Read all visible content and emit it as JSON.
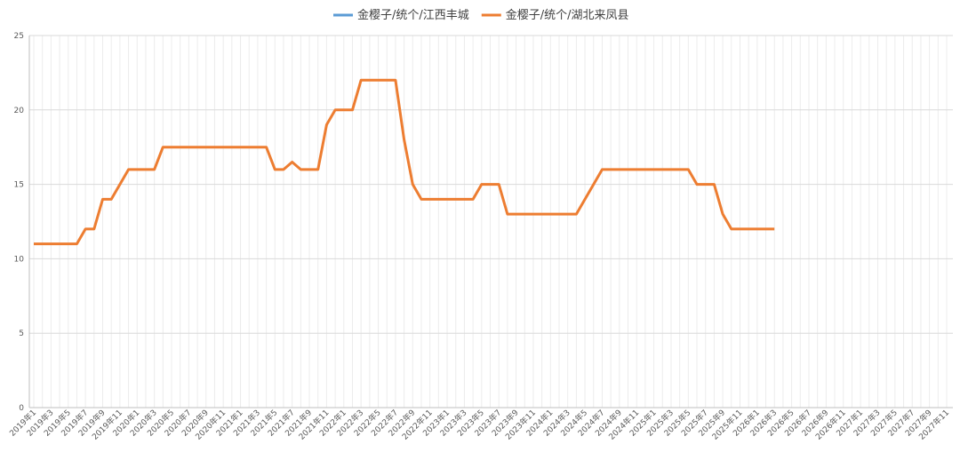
{
  "chart_data": {
    "type": "line",
    "categories": [
      "2019年1",
      null,
      "2019年3",
      null,
      "2019年5",
      null,
      "2019年7",
      null,
      "2019年9",
      null,
      "2019年11",
      null,
      "2020年1",
      null,
      "2020年3",
      null,
      "2020年5",
      null,
      "2020年7",
      null,
      "2020年9",
      null,
      "2020年11",
      null,
      "2021年1",
      null,
      "2021年3",
      null,
      "2021年5",
      null,
      "2021年7",
      null,
      "2021年9",
      null,
      "2021年11",
      null,
      "2022年1",
      null,
      "2022年3",
      null,
      "2022年5",
      null,
      "2022年7",
      null,
      "2022年9",
      null,
      "2022年11",
      null,
      "2023年1",
      null,
      "2023年3",
      null,
      "2023年5",
      null,
      "2023年7",
      null,
      "2023年9",
      null,
      "2023年11",
      null,
      "2024年1",
      null,
      "2024年3",
      null,
      "2024年5",
      null,
      "2024年7",
      null,
      "2024年9",
      null,
      "2024年11",
      null,
      "2025年1",
      null,
      "2025年3",
      null,
      "2025年5",
      null,
      "2025年7",
      null,
      "2025年9",
      null,
      "2025年11",
      null,
      "2026年1",
      null,
      "2026年3",
      null,
      "2026年5",
      null,
      "2026年7",
      null,
      "2026年9",
      null,
      "2026年11",
      null,
      "2027年1",
      null,
      "2027年3",
      null,
      "2027年5",
      null,
      "2027年7",
      null,
      "2027年9",
      null,
      "2027年11"
    ],
    "series": [
      {
        "name": "金樱子/统个/江西丰城",
        "color": "#5b9bd5",
        "values": [
          null,
          null,
          null,
          null,
          null,
          null,
          null,
          null,
          null,
          null,
          null,
          null,
          null,
          null,
          null,
          null,
          null,
          null,
          null,
          null,
          null,
          null,
          null,
          null,
          null,
          null,
          null,
          null,
          null,
          null,
          null,
          null,
          null,
          null,
          null,
          null,
          null,
          null,
          null,
          null,
          null,
          null,
          null,
          null,
          null,
          null,
          null,
          null,
          null,
          null,
          null,
          null,
          null,
          null,
          null,
          null,
          null,
          null,
          null,
          null,
          null,
          null,
          null,
          null,
          null,
          null,
          null,
          null,
          null,
          null,
          null,
          null,
          null,
          null,
          null,
          null,
          null,
          null,
          null,
          null,
          null,
          null,
          null,
          null,
          null,
          null,
          null,
          null,
          null,
          null,
          null,
          null,
          null,
          null,
          null,
          null,
          null,
          null,
          null,
          null,
          null,
          null,
          null,
          null,
          null,
          null,
          null
        ]
      },
      {
        "name": "金樱子/统个/湖北来凤县",
        "color": "#ed7d31",
        "values": [
          11,
          11,
          11,
          11,
          11,
          11,
          12,
          12,
          14,
          14,
          15,
          16,
          16,
          16,
          16,
          17.5,
          17.5,
          17.5,
          17.5,
          17.5,
          17.5,
          17.5,
          17.5,
          17.5,
          17.5,
          17.5,
          17.5,
          17.5,
          16,
          16,
          16.5,
          16,
          16,
          16,
          19,
          20,
          20,
          20,
          22,
          22,
          22,
          22,
          22,
          18,
          15,
          14,
          14,
          14,
          14,
          14,
          14,
          14,
          15,
          15,
          15,
          13,
          13,
          13,
          13,
          13,
          13,
          13,
          13,
          13,
          14,
          15,
          16,
          16,
          16,
          16,
          16,
          16,
          16,
          16,
          16,
          16,
          16,
          15,
          15,
          15,
          13,
          12,
          12,
          12,
          12,
          12,
          12,
          null,
          null,
          null,
          null,
          null,
          null,
          null,
          null,
          null,
          null,
          null,
          null,
          null,
          null,
          null,
          null,
          null,
          null,
          null,
          null
        ]
      }
    ],
    "ylim": [
      0,
      25
    ],
    "yticks": [
      0,
      5,
      10,
      15,
      20,
      25
    ],
    "grid": true,
    "legend": "top"
  }
}
